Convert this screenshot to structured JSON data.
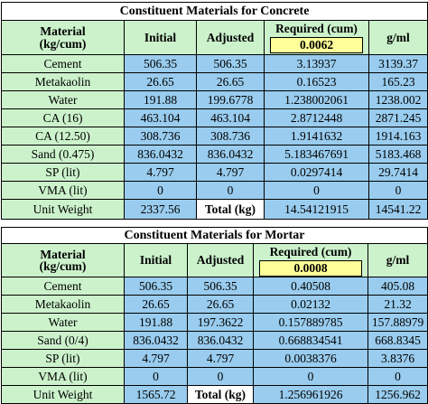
{
  "concrete": {
    "title": "Constituent Materials for Concrete",
    "header": {
      "material": "Material",
      "unit": "(kg/cum)",
      "initial": "Initial",
      "adjusted": "Adjusted",
      "required": "Required (cum)",
      "required_value": "0.0062",
      "gml": "g/ml"
    },
    "rows": [
      {
        "name": "Cement",
        "initial": "506.35",
        "adjusted": "506.35",
        "required": "3.13937",
        "gml": "3139.37"
      },
      {
        "name": "Metakaolin",
        "initial": "26.65",
        "adjusted": "26.65",
        "required": "0.16523",
        "gml": "165.23"
      },
      {
        "name": "Water",
        "initial": "191.88",
        "adjusted": "199.6778",
        "required": "1.238002061",
        "gml": "1238.002"
      },
      {
        "name": "CA (16)",
        "initial": "463.104",
        "adjusted": "463.104",
        "required": "2.8712448",
        "gml": "2871.245"
      },
      {
        "name": "CA (12.50)",
        "initial": "308.736",
        "adjusted": "308.736",
        "required": "1.9141632",
        "gml": "1914.163"
      },
      {
        "name": "Sand (0.475)",
        "initial": "836.0432",
        "adjusted": "836.0432",
        "required": "5.183467691",
        "gml": "5183.468"
      },
      {
        "name": "SP (lit)",
        "initial": "4.797",
        "adjusted": "4.797",
        "required": "0.0297414",
        "gml": "29.7414"
      },
      {
        "name": "VMA (lit)",
        "initial": "0",
        "adjusted": "0",
        "required": "0",
        "gml": "0"
      }
    ],
    "footer": {
      "name": "Unit Weight",
      "initial": "2337.56",
      "total_label": "Total (kg)",
      "required": "14.54121915",
      "gml": "14541.22"
    }
  },
  "mortar": {
    "title": "Constituent Materials for Mortar",
    "header": {
      "material": "Material",
      "unit": "(kg/cum)",
      "initial": "Initial",
      "adjusted": "Adjusted",
      "required": "Required (cum)",
      "required_value": "0.0008",
      "gml": "g/ml"
    },
    "rows": [
      {
        "name": "Cement",
        "initial": "506.35",
        "adjusted": "506.35",
        "required": "0.40508",
        "gml": "405.08"
      },
      {
        "name": "Metakaolin",
        "initial": "26.65",
        "adjusted": "26.65",
        "required": "0.02132",
        "gml": "21.32"
      },
      {
        "name": "Water",
        "initial": "191.88",
        "adjusted": "197.3622",
        "required": "0.157889785",
        "gml": "157.88979"
      },
      {
        "name": "Sand (0/4)",
        "initial": "836.0432",
        "adjusted": "836.0432",
        "required": "0.668834541",
        "gml": "668.8345"
      },
      {
        "name": "SP (lit)",
        "initial": "4.797",
        "adjusted": "4.797",
        "required": "0.0038376",
        "gml": "3.8376"
      },
      {
        "name": "VMA (lit)",
        "initial": "0",
        "adjusted": "0",
        "required": "0",
        "gml": "0"
      }
    ],
    "footer": {
      "name": "Unit Weight",
      "initial": "1565.72",
      "total_label": "Total (kg)",
      "required": "1.256961926",
      "gml": "1256.962"
    }
  }
}
